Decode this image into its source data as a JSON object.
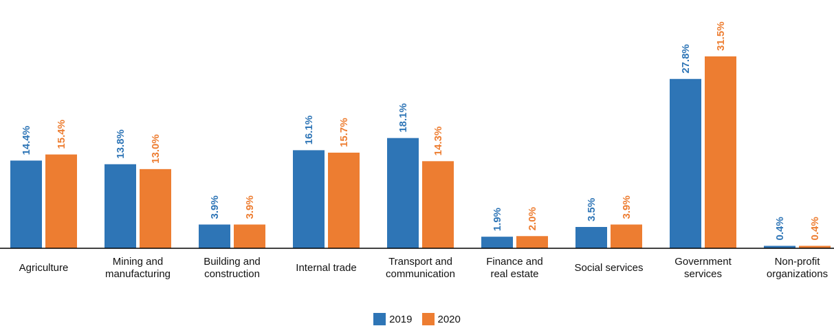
{
  "chart_data": {
    "type": "bar",
    "categories": [
      [
        "Agriculture"
      ],
      [
        "Mining and",
        "manufacturing"
      ],
      [
        "Building and",
        "construction"
      ],
      [
        "Internal trade"
      ],
      [
        "Transport and",
        "communication"
      ],
      [
        "Finance and",
        "real estate"
      ],
      [
        "Social services"
      ],
      [
        "Government",
        "services"
      ],
      [
        "Non-profit",
        "organizations"
      ]
    ],
    "series": [
      {
        "name": "2019",
        "color": "#2E75B6",
        "values": [
          14.4,
          13.8,
          3.9,
          16.1,
          18.1,
          1.9,
          3.5,
          27.8,
          0.4
        ],
        "labels": [
          "14.4%",
          "13.8%",
          "3.9%",
          "16.1%",
          "18.1%",
          "1.9%",
          "3.5%",
          "27.8%",
          "0.4%"
        ]
      },
      {
        "name": "2020",
        "color": "#ED7D31",
        "values": [
          15.4,
          13.0,
          3.9,
          15.7,
          14.3,
          2.0,
          3.9,
          31.5,
          0.4
        ],
        "labels": [
          "15.4%",
          "13.0%",
          "3.9%",
          "15.7%",
          "14.3%",
          "2.0%",
          "3.9%",
          "31.5%",
          "0.4%"
        ]
      }
    ],
    "title": "",
    "xlabel": "",
    "ylabel": "",
    "ylim": [
      0,
      31.5
    ],
    "legend_position": "bottom",
    "grid": false
  }
}
